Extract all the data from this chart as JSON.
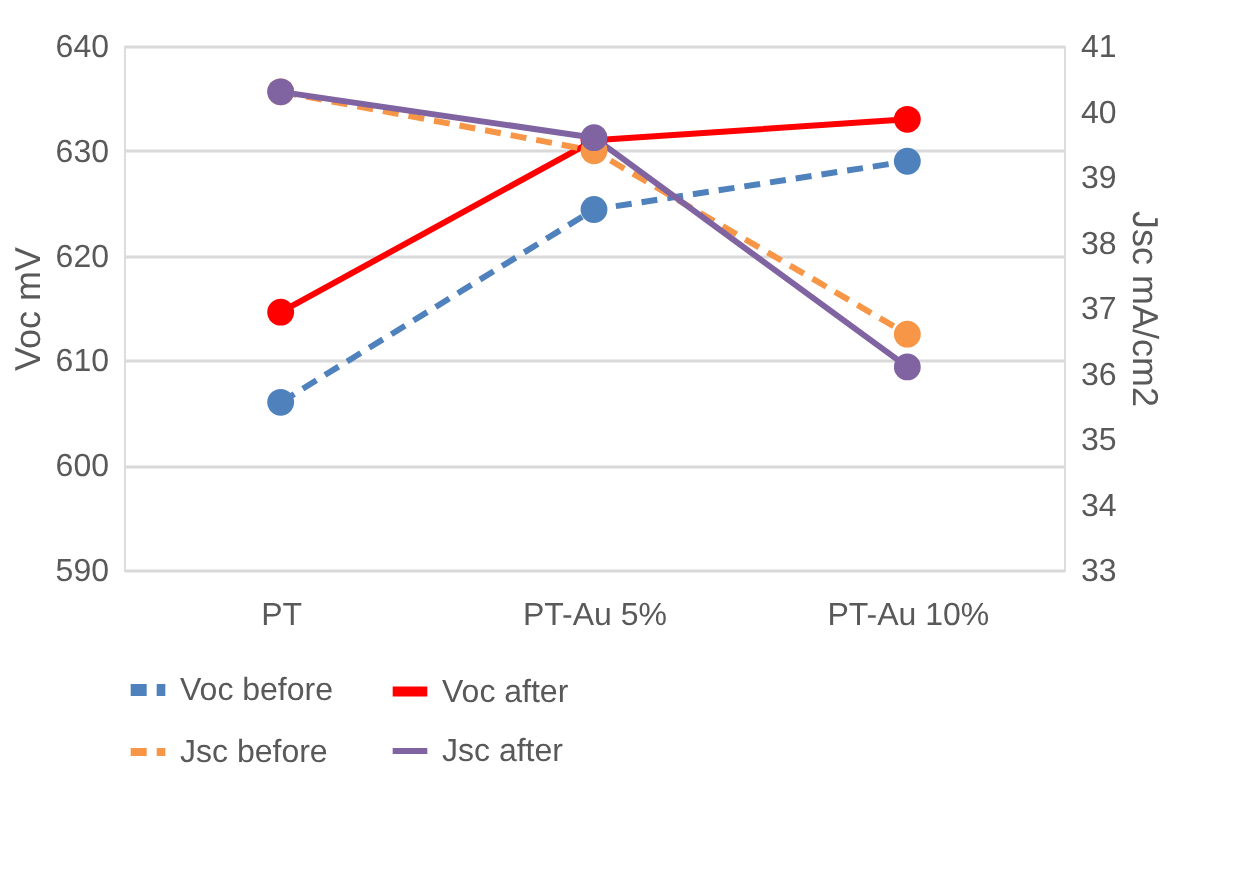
{
  "chart_data": {
    "type": "line",
    "ylabel": "Voc    mV",
    "y2label": "Jsc   mA/cm2",
    "categories": [
      "PT",
      "PT-Au 5%",
      "PT-Au 10%"
    ],
    "series": [
      {
        "name": "Voc   before",
        "color": "#4f81bd",
        "line_style": "dashed",
        "values": [
          606,
          624.4,
          629
        ]
      },
      {
        "name": "Voc after",
        "color": "#ff0000",
        "line_style": "solid",
        "values": [
          614.6,
          631,
          633
        ]
      },
      {
        "name": "Jsc   before",
        "color": "#f79646",
        "line_style": "dashed",
        "axis": "y2",
        "values": [
          40.3,
          39.4,
          36.6
        ]
      },
      {
        "name": "Jsc after",
        "color": "#8064a2",
        "line_style": "solid",
        "axis": "y2",
        "values": [
          40.3,
          39.6,
          36.1
        ]
      }
    ],
    "ylim": [
      590,
      640
    ],
    "yticks": [
      590,
      600,
      610,
      620,
      630,
      640
    ],
    "y2lim": [
      33,
      41
    ],
    "y2ticks": [
      33,
      34,
      35,
      36,
      37,
      38,
      39,
      40,
      41
    ],
    "grid": "y",
    "legend": "bottom",
    "marker": "circle"
  }
}
